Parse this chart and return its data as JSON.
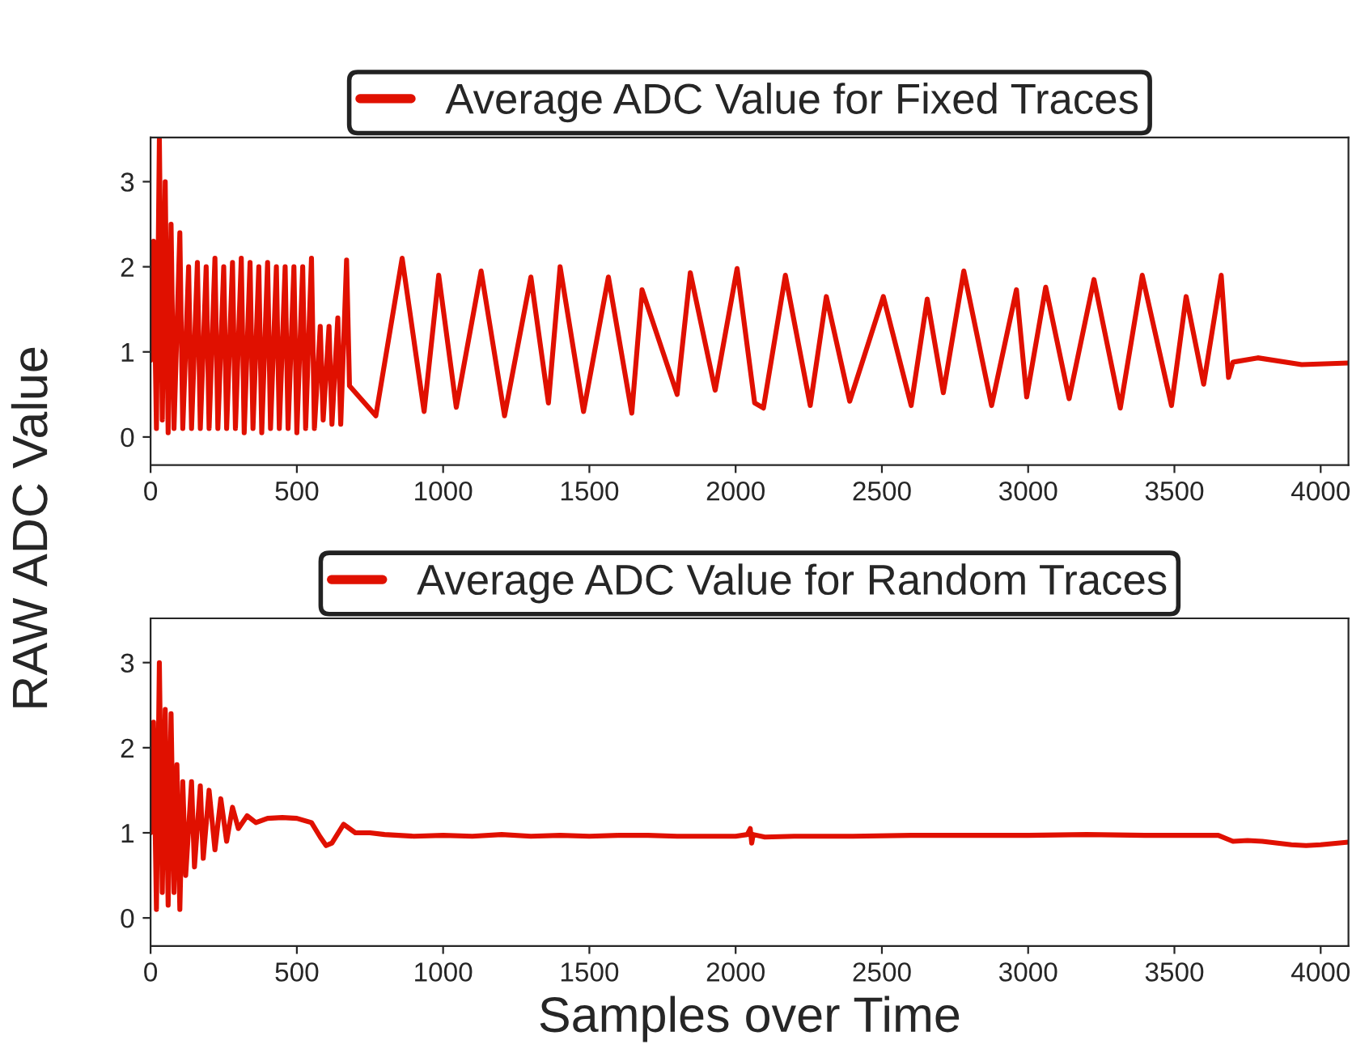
{
  "chart_data": [
    {
      "type": "line",
      "ylabel": "RAW ADC Value",
      "xlim": [
        0,
        4095
      ],
      "ylim": [
        -0.33,
        3.52
      ],
      "xticks": [
        0,
        500,
        1000,
        1500,
        2000,
        2500,
        3000,
        3500,
        4000
      ],
      "yticks": [
        0,
        1,
        2,
        3
      ],
      "legend": "top",
      "grid": false,
      "x": [
        0,
        10,
        20,
        30,
        40,
        50,
        60,
        70,
        80,
        100,
        110,
        130,
        140,
        160,
        170,
        190,
        200,
        220,
        230,
        250,
        260,
        280,
        290,
        310,
        320,
        340,
        350,
        370,
        380,
        400,
        410,
        430,
        440,
        460,
        470,
        490,
        500,
        520,
        530,
        550,
        560,
        580,
        590,
        610,
        620,
        640,
        650,
        670,
        680,
        770,
        860,
        935,
        985,
        1045,
        1130,
        1210,
        1300,
        1360,
        1400,
        1480,
        1565,
        1645,
        1680,
        1800,
        1845,
        1930,
        2005,
        2065,
        2095,
        2170,
        2255,
        2310,
        2390,
        2505,
        2600,
        2655,
        2710,
        2780,
        2875,
        2960,
        2995,
        3060,
        3140,
        3225,
        3315,
        3390,
        3490,
        3540,
        3600,
        3660,
        3685,
        3700,
        3785,
        3935,
        4095
      ],
      "series": [
        {
          "name": "Average ADC Value for Fixed Traces",
          "color": "#e01000",
          "values": [
            0.9,
            2.3,
            0.1,
            3.5,
            0.2,
            3.0,
            0.05,
            2.5,
            0.1,
            2.4,
            0.1,
            2.0,
            0.1,
            2.05,
            0.1,
            2.0,
            0.1,
            2.1,
            0.1,
            2.0,
            0.1,
            2.05,
            0.1,
            2.1,
            0.05,
            2.05,
            0.1,
            2.0,
            0.05,
            2.05,
            0.1,
            2.0,
            0.1,
            2.0,
            0.1,
            2.0,
            0.05,
            2.0,
            0.1,
            2.1,
            0.1,
            1.3,
            0.2,
            1.3,
            0.15,
            1.4,
            0.15,
            2.08,
            0.6,
            0.25,
            2.1,
            0.3,
            1.9,
            0.35,
            1.95,
            0.25,
            1.88,
            0.4,
            2.0,
            0.3,
            1.88,
            0.28,
            1.73,
            0.5,
            1.93,
            0.55,
            1.98,
            0.4,
            0.34,
            1.9,
            0.37,
            1.65,
            0.42,
            1.65,
            0.37,
            1.62,
            0.52,
            1.95,
            0.37,
            1.73,
            0.47,
            1.76,
            0.45,
            1.85,
            0.34,
            1.9,
            0.37,
            1.65,
            0.62,
            1.9,
            0.7,
            0.88,
            0.93,
            0.85,
            0.87
          ]
        }
      ]
    },
    {
      "type": "line",
      "xlabel": "Samples over Time",
      "xlim": [
        0,
        4095
      ],
      "ylim": [
        -0.33,
        3.52
      ],
      "xticks": [
        0,
        500,
        1000,
        1500,
        2000,
        2500,
        3000,
        3500,
        4000
      ],
      "yticks": [
        0,
        1,
        2,
        3
      ],
      "legend": "top",
      "grid": false,
      "x": [
        0,
        10,
        20,
        30,
        40,
        50,
        60,
        70,
        80,
        90,
        100,
        110,
        120,
        140,
        150,
        170,
        180,
        200,
        220,
        240,
        260,
        280,
        300,
        330,
        360,
        400,
        450,
        500,
        550,
        580,
        600,
        620,
        660,
        700,
        750,
        800,
        900,
        1000,
        1100,
        1200,
        1300,
        1400,
        1500,
        1600,
        1700,
        1800,
        1900,
        2000,
        2040,
        2050,
        2055,
        2060,
        2100,
        2200,
        2400,
        2600,
        2800,
        3000,
        3200,
        3400,
        3650,
        3700,
        3750,
        3800,
        3900,
        3950,
        4000,
        4095
      ],
      "series": [
        {
          "name": "Average ADC Value for Random Traces",
          "color": "#e01000",
          "values": [
            1.0,
            2.3,
            0.1,
            3.0,
            0.3,
            2.45,
            0.15,
            2.4,
            0.3,
            1.8,
            0.1,
            1.6,
            0.5,
            1.6,
            0.6,
            1.55,
            0.7,
            1.5,
            0.8,
            1.4,
            0.9,
            1.3,
            1.05,
            1.2,
            1.12,
            1.17,
            1.18,
            1.17,
            1.12,
            0.95,
            0.85,
            0.88,
            1.1,
            1.0,
            1.0,
            0.98,
            0.96,
            0.97,
            0.96,
            0.98,
            0.96,
            0.97,
            0.96,
            0.97,
            0.97,
            0.96,
            0.96,
            0.96,
            0.98,
            1.05,
            0.88,
            0.98,
            0.95,
            0.96,
            0.96,
            0.97,
            0.97,
            0.97,
            0.98,
            0.97,
            0.97,
            0.9,
            0.91,
            0.9,
            0.86,
            0.85,
            0.86,
            0.89
          ]
        }
      ]
    }
  ]
}
